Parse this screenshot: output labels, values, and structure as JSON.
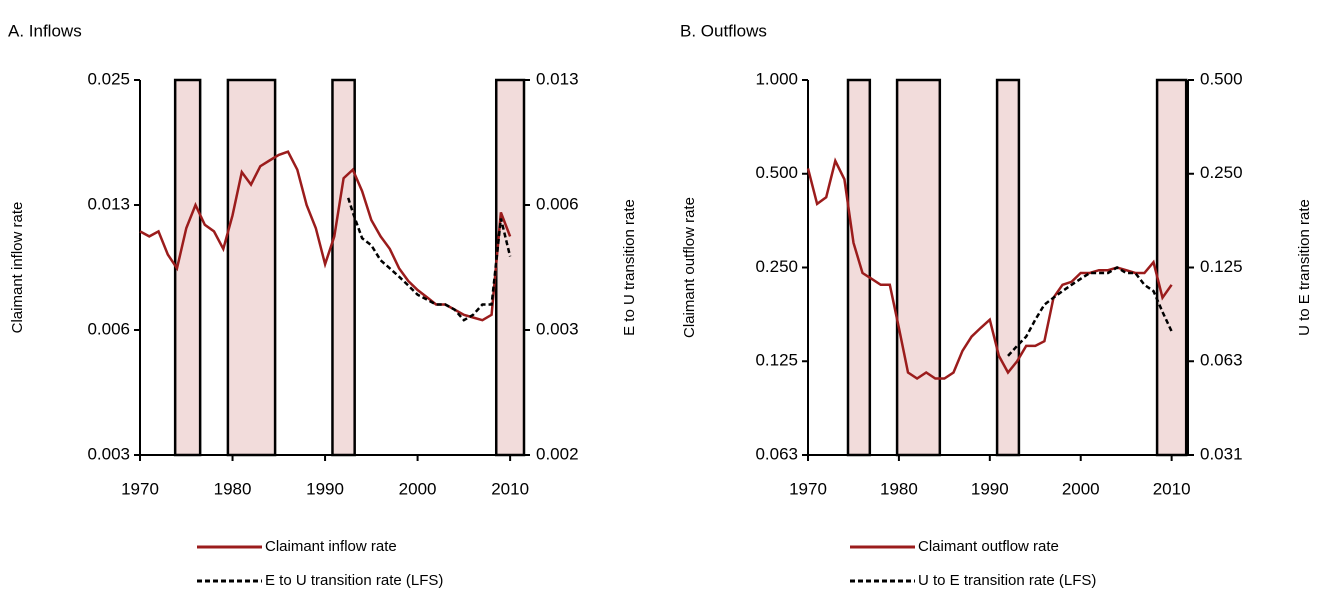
{
  "chart_data": [
    {
      "type": "line",
      "title": "A. Inflows",
      "ylabel": "Claimant  inflow rate",
      "y2label": "E to U transition rate",
      "log_scale": true,
      "grid": false,
      "xlim": [
        1970,
        2011.5
      ],
      "xticks": [
        1970,
        1980,
        1990,
        2000,
        2010
      ],
      "ylim": [
        0.003125,
        0.025
      ],
      "yticks": [
        {
          "value": 0.003125,
          "label": "0.003"
        },
        {
          "value": 0.00625,
          "label": "0.006"
        },
        {
          "value": 0.0125,
          "label": "0.013"
        },
        {
          "value": 0.025,
          "label": "0.025"
        }
      ],
      "y2lim": [
        0.0015625,
        0.0125
      ],
      "y2ticks": [
        {
          "value": 0.0015625,
          "label": "0.002"
        },
        {
          "value": 0.003125,
          "label": "0.003"
        },
        {
          "value": 0.00625,
          "label": "0.006"
        },
        {
          "value": 0.0125,
          "label": "0.013"
        }
      ],
      "recessions": [
        [
          1973.8,
          1976.5
        ],
        [
          1979.5,
          1984.6
        ],
        [
          1990.8,
          1993.2
        ],
        [
          2008.5,
          2011.5
        ]
      ],
      "recession_color": "#f2dcdb",
      "series": [
        {
          "name": "Claimant inflow rate",
          "color": "#9b1c1c",
          "dash": "solid",
          "x": [
            1970,
            1971,
            1972,
            1973,
            1974,
            1975,
            1976,
            1977,
            1978,
            1979,
            1980,
            1981,
            1982,
            1983,
            1984,
            1985,
            1986,
            1987,
            1988,
            1989,
            1990,
            1991,
            1992,
            1993,
            1994,
            1995,
            1996,
            1997,
            1998,
            1999,
            2000,
            2001,
            2002,
            2003,
            2004,
            2005,
            2006,
            2007,
            2008,
            2009,
            2010
          ],
          "values": [
            0.0108,
            0.0105,
            0.0108,
            0.0095,
            0.0088,
            0.011,
            0.0125,
            0.0112,
            0.0108,
            0.0098,
            0.0118,
            0.015,
            0.014,
            0.0155,
            0.016,
            0.0165,
            0.0168,
            0.0152,
            0.0125,
            0.011,
            0.009,
            0.0105,
            0.0145,
            0.0152,
            0.0135,
            0.0115,
            0.0105,
            0.0098,
            0.0088,
            0.0082,
            0.0078,
            0.0075,
            0.0072,
            0.0072,
            0.007,
            0.0068,
            0.0067,
            0.0066,
            0.0068,
            0.012,
            0.0105
          ]
        },
        {
          "name": "E to U transition rate (LFS)",
          "color": "#000000",
          "dash": "dashed",
          "axis": "y2",
          "x": [
            1992.5,
            1993,
            1994,
            1995,
            1996,
            1997,
            1998,
            1999,
            2000,
            2001,
            2002,
            2003,
            2004,
            2005,
            2006,
            2007,
            2008,
            2009,
            2010
          ],
          "values": [
            0.0065,
            0.006,
            0.0052,
            0.005,
            0.0046,
            0.0044,
            0.0042,
            0.004,
            0.0038,
            0.0037,
            0.0036,
            0.0036,
            0.0035,
            0.0033,
            0.0034,
            0.0036,
            0.0036,
            0.0058,
            0.0047
          ]
        }
      ]
    },
    {
      "type": "line",
      "title": "B. Outflows",
      "ylabel": "Claimant  outflow rate",
      "y2label": "U to E transition rate",
      "log_scale": true,
      "grid": false,
      "xlim": [
        1970,
        2011.8
      ],
      "xticks": [
        1970,
        1980,
        1990,
        2000,
        2010
      ],
      "ylim": [
        0.0625,
        1
      ],
      "yticks": [
        {
          "value": 0.0625,
          "label": "0.063"
        },
        {
          "value": 0.125,
          "label": "0.125"
        },
        {
          "value": 0.25,
          "label": "0.250"
        },
        {
          "value": 0.5,
          "label": "0.500"
        },
        {
          "value": 1,
          "label": "1.000"
        }
      ],
      "y2lim": [
        0.03125,
        0.5
      ],
      "y2ticks": [
        {
          "value": 0.03125,
          "label": "0.031"
        },
        {
          "value": 0.0625,
          "label": "0.063"
        },
        {
          "value": 0.125,
          "label": "0.125"
        },
        {
          "value": 0.25,
          "label": "0.250"
        },
        {
          "value": 0.5,
          "label": "0.500"
        }
      ],
      "recessions": [
        [
          1974.4,
          1976.8
        ],
        [
          1979.8,
          1984.5
        ],
        [
          1990.8,
          1993.2
        ],
        [
          2008.4,
          2011.6
        ]
      ],
      "recession_color": "#f2dcdb",
      "series": [
        {
          "name": "Claimant outflow rate",
          "color": "#9b1c1c",
          "dash": "solid",
          "x": [
            1970,
            1971,
            1972,
            1973,
            1974,
            1975,
            1976,
            1977,
            1978,
            1979,
            1980,
            1981,
            1982,
            1983,
            1984,
            1985,
            1986,
            1987,
            1988,
            1989,
            1990,
            1991,
            1992,
            1993,
            1994,
            1995,
            1996,
            1997,
            1998,
            1999,
            2000,
            2001,
            2002,
            2003,
            2004,
            2005,
            2006,
            2007,
            2008,
            2009,
            2010
          ],
          "values": [
            0.52,
            0.4,
            0.42,
            0.55,
            0.48,
            0.3,
            0.24,
            0.23,
            0.22,
            0.22,
            0.16,
            0.115,
            0.11,
            0.115,
            0.11,
            0.11,
            0.115,
            0.135,
            0.15,
            0.16,
            0.17,
            0.13,
            0.115,
            0.125,
            0.14,
            0.14,
            0.145,
            0.2,
            0.22,
            0.225,
            0.24,
            0.24,
            0.245,
            0.245,
            0.25,
            0.245,
            0.24,
            0.24,
            0.26,
            0.2,
            0.22
          ]
        },
        {
          "name": "U to E transition rate (LFS)",
          "color": "#000000",
          "dash": "dashed",
          "axis": "y2",
          "x": [
            1992,
            1993,
            1994,
            1995,
            1996,
            1997,
            1998,
            1999,
            2000,
            2001,
            2002,
            2003,
            2004,
            2005,
            2006,
            2007,
            2008,
            2009,
            2010
          ],
          "values": [
            0.065,
            0.07,
            0.075,
            0.085,
            0.095,
            0.1,
            0.105,
            0.11,
            0.115,
            0.12,
            0.12,
            0.12,
            0.125,
            0.12,
            0.12,
            0.11,
            0.105,
            0.09,
            0.078
          ]
        }
      ]
    }
  ]
}
